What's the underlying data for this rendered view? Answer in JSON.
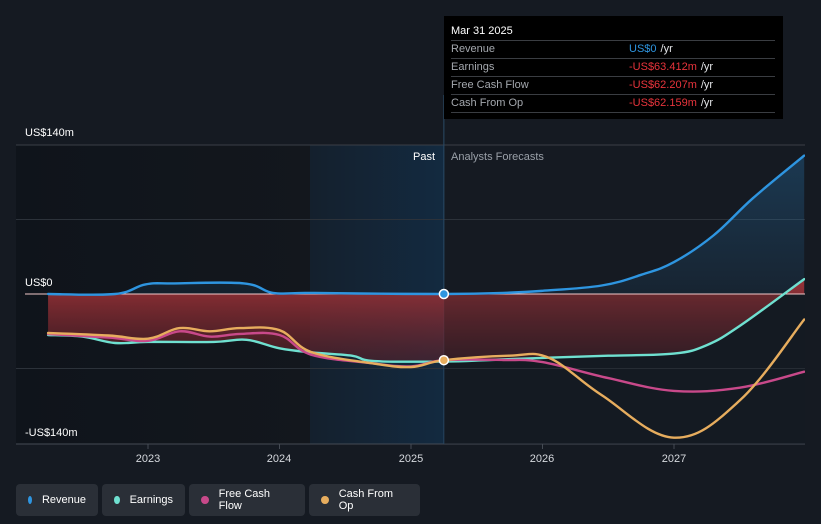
{
  "tooltip": {
    "date": "Mar 31 2025",
    "rows": [
      {
        "name": "Revenue",
        "value": "US$0",
        "unit": "/yr",
        "color": "blue"
      },
      {
        "name": "Earnings",
        "value": "-US$63.412m",
        "unit": "/yr",
        "color": "red"
      },
      {
        "name": "Free Cash Flow",
        "value": "-US$62.207m",
        "unit": "/yr",
        "color": "red"
      },
      {
        "name": "Cash From Op",
        "value": "-US$62.159m",
        "unit": "/yr",
        "color": "red"
      }
    ]
  },
  "legend": [
    {
      "label": "Revenue",
      "color": "#2e95e0"
    },
    {
      "label": "Earnings",
      "color": "#6fe0d0"
    },
    {
      "label": "Free Cash Flow",
      "color": "#c8498a"
    },
    {
      "label": "Cash From Op",
      "color": "#e7ad5e"
    }
  ],
  "chart_data": {
    "type": "line",
    "title": "",
    "xlabel": "",
    "ylabel": "",
    "y_tick_labels": [
      "US$140m",
      "US$0",
      "-US$140m"
    ],
    "x_tick_labels": [
      "2023",
      "2024",
      "2025",
      "2026",
      "2027"
    ],
    "ylim": [
      -140,
      140
    ],
    "xlim": [
      2022.24,
      2027.99
    ],
    "y_unit": "US$m",
    "grid": true,
    "divider_date": 2025.25,
    "past_label": "Past",
    "forecast_label": "Analysts Forecasts",
    "highlight_point_x": 2025.25,
    "series": [
      {
        "name": "Revenue",
        "color": "#2e95e0",
        "points": [
          [
            2022.24,
            0
          ],
          [
            2022.75,
            0
          ],
          [
            2022.98,
            9
          ],
          [
            2023.2,
            10
          ],
          [
            2023.73,
            10
          ],
          [
            2023.95,
            1
          ],
          [
            2024.2,
            1
          ],
          [
            2024.6,
            0.5
          ],
          [
            2025.25,
            0
          ],
          [
            2025.7,
            1
          ],
          [
            2026.0,
            3
          ],
          [
            2026.45,
            8
          ],
          [
            2026.75,
            18
          ],
          [
            2027.0,
            30
          ],
          [
            2027.3,
            55
          ],
          [
            2027.6,
            90
          ],
          [
            2027.99,
            130
          ]
        ]
      },
      {
        "name": "Earnings",
        "color": "#6fe0d0",
        "points": [
          [
            2022.24,
            -38.5
          ],
          [
            2022.5,
            -40
          ],
          [
            2022.75,
            -46
          ],
          [
            2023.0,
            -45
          ],
          [
            2023.5,
            -45
          ],
          [
            2023.75,
            -43
          ],
          [
            2024.0,
            -51
          ],
          [
            2024.25,
            -55
          ],
          [
            2024.55,
            -58
          ],
          [
            2024.72,
            -63
          ],
          [
            2025.25,
            -63.4
          ],
          [
            2025.6,
            -62
          ],
          [
            2026.0,
            -60
          ],
          [
            2026.5,
            -58
          ],
          [
            2027.0,
            -56
          ],
          [
            2027.25,
            -48
          ],
          [
            2027.5,
            -30
          ],
          [
            2027.99,
            14
          ]
        ]
      },
      {
        "name": "Free Cash Flow",
        "color": "#c8498a",
        "points": [
          [
            2022.24,
            -37.6
          ],
          [
            2022.7,
            -41
          ],
          [
            2023.0,
            -44
          ],
          [
            2023.24,
            -35
          ],
          [
            2023.47,
            -40
          ],
          [
            2023.7,
            -37.5
          ],
          [
            2024.0,
            -38.5
          ],
          [
            2024.24,
            -57
          ],
          [
            2024.7,
            -65
          ],
          [
            2025.0,
            -68
          ],
          [
            2025.25,
            -62.2
          ],
          [
            2025.7,
            -62
          ],
          [
            2026.0,
            -64
          ],
          [
            2026.5,
            -79
          ],
          [
            2027.0,
            -91
          ],
          [
            2027.5,
            -88
          ],
          [
            2027.99,
            -73
          ]
        ]
      },
      {
        "name": "Cash From Op",
        "color": "#e7ad5e",
        "points": [
          [
            2022.24,
            -36.6
          ],
          [
            2022.7,
            -39
          ],
          [
            2023.0,
            -42
          ],
          [
            2023.24,
            -32
          ],
          [
            2023.47,
            -35
          ],
          [
            2023.7,
            -32
          ],
          [
            2024.0,
            -34
          ],
          [
            2024.24,
            -54.5
          ],
          [
            2024.7,
            -65
          ],
          [
            2025.0,
            -68.6
          ],
          [
            2025.25,
            -62.2
          ],
          [
            2025.75,
            -58
          ],
          [
            2026.05,
            -60
          ],
          [
            2026.45,
            -95
          ],
          [
            2027.0,
            -135
          ],
          [
            2027.5,
            -100
          ],
          [
            2027.99,
            -24
          ]
        ]
      }
    ]
  }
}
